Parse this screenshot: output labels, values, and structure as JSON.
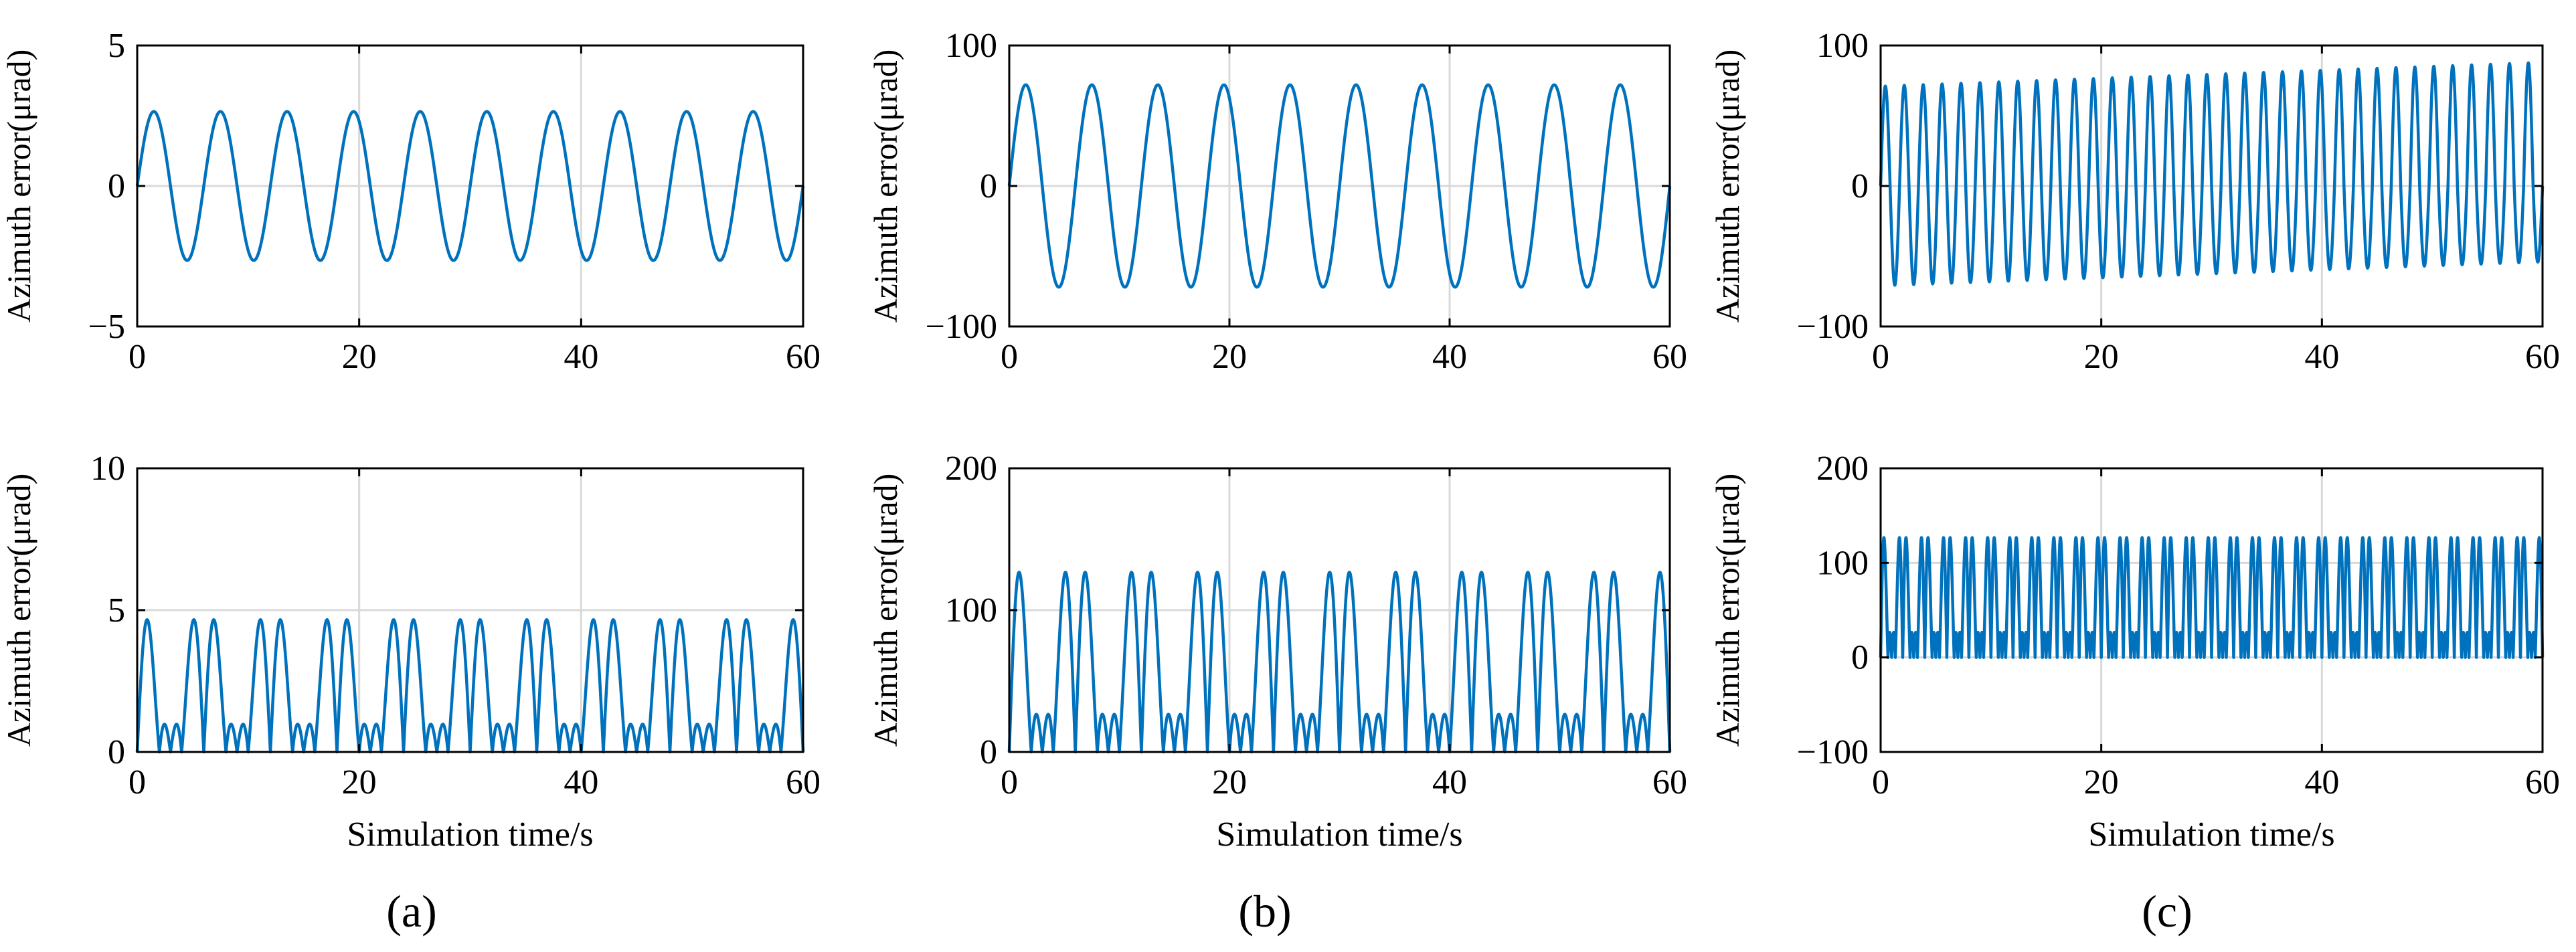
{
  "figure": {
    "colors": {
      "trace": "#0072bd",
      "grid": "#d9d9d9",
      "axis": "#000000"
    },
    "panel_labels": [
      "(a)",
      "(b)",
      "(c)"
    ]
  },
  "chart_data": [
    {
      "id": "a-top",
      "type": "line",
      "xlabel": "",
      "ylabel": "Azimuth error(μrad)",
      "xlim": [
        0,
        60
      ],
      "ylim": [
        -5,
        5
      ],
      "xticks": [
        0,
        20,
        40,
        60
      ],
      "yticks": [
        -5,
        0,
        5
      ],
      "xtick_labels": [
        "0",
        "20",
        "40",
        "60"
      ],
      "ytick_labels": [
        "−5",
        "0",
        "5"
      ],
      "grid": true,
      "series": [
        {
          "name": "azimuth error",
          "x_range": [
            0,
            60
          ],
          "cycles": 10,
          "model": "sine",
          "amplitude_start": 2.65,
          "amplitude_end": 2.65,
          "offset": 0
        }
      ]
    },
    {
      "id": "b-top",
      "type": "line",
      "xlabel": "",
      "ylabel": "Azimuth error(μrad)",
      "xlim": [
        0,
        60
      ],
      "ylim": [
        -100,
        100
      ],
      "xticks": [
        0,
        20,
        40,
        60
      ],
      "yticks": [
        -100,
        0,
        100
      ],
      "xtick_labels": [
        "0",
        "20",
        "40",
        "60"
      ],
      "ytick_labels": [
        "−100",
        "0",
        "100"
      ],
      "grid": true,
      "series": [
        {
          "name": "azimuth error",
          "x_range": [
            0,
            60
          ],
          "cycles": 10,
          "model": "sine",
          "amplitude_start": 72,
          "amplitude_end": 72,
          "offset": 0
        }
      ]
    },
    {
      "id": "c-top",
      "type": "line",
      "xlabel": "",
      "ylabel": "Azimuth error(μrad)",
      "xlim": [
        0,
        60
      ],
      "ylim": [
        -100,
        100
      ],
      "xticks": [
        0,
        20,
        40,
        60
      ],
      "yticks": [
        -100,
        0,
        100
      ],
      "xtick_labels": [
        "0",
        "20",
        "40",
        "60"
      ],
      "ytick_labels": [
        "−100",
        "0",
        "100"
      ],
      "grid": true,
      "series": [
        {
          "name": "azimuth error",
          "x_range": [
            0,
            60
          ],
          "cycles": 35,
          "model": "drift",
          "amplitude_start": 71,
          "amplitude_end": 71,
          "offset": 0,
          "max_end": 88,
          "min_end": -54
        }
      ]
    },
    {
      "id": "a-bottom",
      "type": "line",
      "xlabel": "Simulation time/s",
      "ylabel": "Azimuth error(μrad)",
      "xlim": [
        0,
        60
      ],
      "ylim": [
        0,
        10
      ],
      "xticks": [
        0,
        20,
        40,
        60
      ],
      "yticks": [
        0,
        5,
        10
      ],
      "xtick_labels": [
        "0",
        "20",
        "40",
        "60"
      ],
      "ytick_labels": [
        "0",
        "5",
        "10"
      ],
      "grid": true,
      "series": [
        {
          "name": "azimuth error",
          "x_range": [
            0,
            60
          ],
          "cycles": 10,
          "model": "abs2",
          "a1": 2.65,
          "a2": 2.65
        }
      ]
    },
    {
      "id": "b-bottom",
      "type": "line",
      "xlabel": "Simulation time/s",
      "ylabel": "Azimuth error(μrad)",
      "xlim": [
        0,
        60
      ],
      "ylim": [
        0,
        200
      ],
      "xticks": [
        0,
        20,
        40,
        60
      ],
      "yticks": [
        0,
        100,
        200
      ],
      "xtick_labels": [
        "0",
        "20",
        "40",
        "60"
      ],
      "ytick_labels": [
        "0",
        "100",
        "200"
      ],
      "grid": true,
      "series": [
        {
          "name": "azimuth error",
          "x_range": [
            0,
            60
          ],
          "cycles": 10,
          "model": "abs2",
          "a1": 72,
          "a2": 72
        }
      ]
    },
    {
      "id": "c-bottom",
      "type": "line",
      "xlabel": "Simulation time/s",
      "ylabel": "Azimuth error(μrad)",
      "xlim": [
        0,
        60
      ],
      "ylim": [
        -100,
        200
      ],
      "xticks": [
        0,
        20,
        40,
        60
      ],
      "yticks": [
        -100,
        0,
        100,
        200
      ],
      "xtick_labels": [
        "0",
        "20",
        "40",
        "60"
      ],
      "ytick_labels": [
        "−100",
        "0",
        "100",
        "200"
      ],
      "grid": true,
      "series": [
        {
          "name": "azimuth error",
          "x_range": [
            0,
            60
          ],
          "cycles": 30,
          "model": "abs2",
          "a1": 72,
          "a2": 72
        }
      ]
    }
  ]
}
